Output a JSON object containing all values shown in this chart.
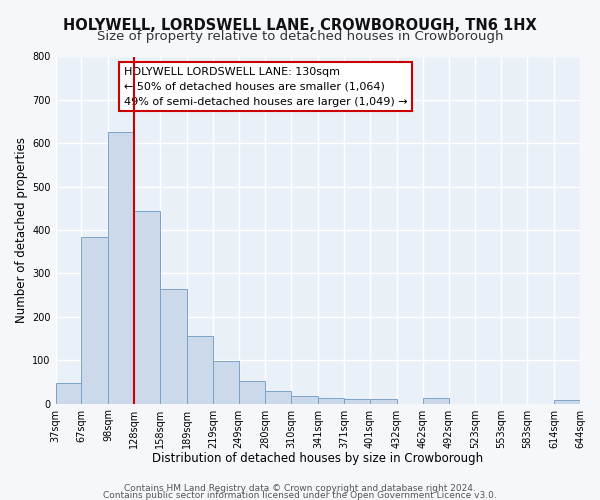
{
  "title": "HOLYWELL, LORDSWELL LANE, CROWBOROUGH, TN6 1HX",
  "subtitle": "Size of property relative to detached houses in Crowborough",
  "xlabel": "Distribution of detached houses by size in Crowborough",
  "ylabel": "Number of detached properties",
  "bar_color": "#ccd9ea",
  "bar_edge_color": "#7aa3c8",
  "background_color": "#eaf0f8",
  "fig_background_color": "#f5f7fb",
  "grid_color": "#ffffff",
  "vline_x": 128,
  "vline_color": "#cc0000",
  "bin_edges": [
    37,
    67,
    98,
    128,
    158,
    189,
    219,
    249,
    280,
    310,
    341,
    371,
    401,
    432,
    462,
    492,
    523,
    553,
    583,
    614,
    644
  ],
  "bar_heights": [
    48,
    385,
    625,
    445,
    265,
    155,
    98,
    52,
    30,
    18,
    12,
    10,
    10,
    0,
    12,
    0,
    0,
    0,
    0,
    8
  ],
  "ylim": [
    0,
    800
  ],
  "yticks": [
    0,
    100,
    200,
    300,
    400,
    500,
    600,
    700,
    800
  ],
  "annotation_line1": "HOLYWELL LORDSWELL LANE: 130sqm",
  "annotation_line2": "← 50% of detached houses are smaller (1,064)",
  "annotation_line3": "49% of semi-detached houses are larger (1,049) →",
  "footer1": "Contains HM Land Registry data © Crown copyright and database right 2024.",
  "footer2": "Contains public sector information licensed under the Open Government Licence v3.0.",
  "title_fontsize": 10.5,
  "subtitle_fontsize": 9.5,
  "xlabel_fontsize": 8.5,
  "ylabel_fontsize": 8.5,
  "tick_label_fontsize": 7,
  "annotation_fontsize": 8,
  "footer_fontsize": 6.5
}
